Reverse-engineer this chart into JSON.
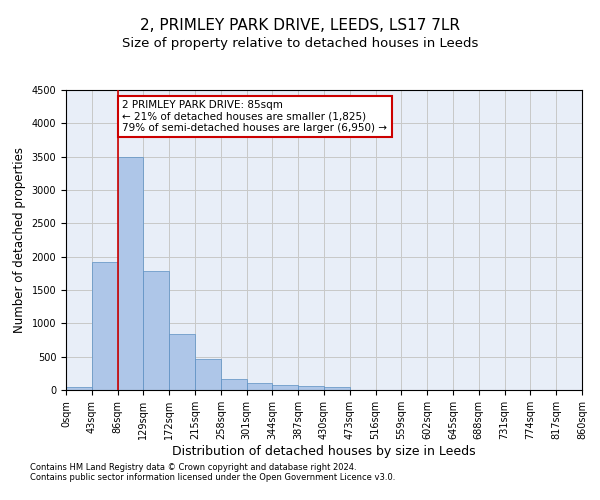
{
  "title1": "2, PRIMLEY PARK DRIVE, LEEDS, LS17 7LR",
  "title2": "Size of property relative to detached houses in Leeds",
  "xlabel": "Distribution of detached houses by size in Leeds",
  "ylabel": "Number of detached properties",
  "bar_values": [
    50,
    1920,
    3500,
    1780,
    840,
    460,
    160,
    100,
    80,
    60,
    50,
    0,
    0,
    0,
    0,
    0,
    0,
    0,
    0,
    0
  ],
  "bin_edges": [
    0,
    43,
    86,
    129,
    172,
    215,
    258,
    301,
    344,
    387,
    430,
    473,
    516,
    559,
    602,
    645,
    688,
    731,
    774,
    817,
    860
  ],
  "tick_labels": [
    "0sqm",
    "43sqm",
    "86sqm",
    "129sqm",
    "172sqm",
    "215sqm",
    "258sqm",
    "301sqm",
    "344sqm",
    "387sqm",
    "430sqm",
    "473sqm",
    "516sqm",
    "559sqm",
    "602sqm",
    "645sqm",
    "688sqm",
    "731sqm",
    "774sqm",
    "817sqm",
    "860sqm"
  ],
  "bar_color": "#aec6e8",
  "bar_edge_color": "#5a8fc2",
  "bar_edge_width": 0.5,
  "grid_color": "#c8c8c8",
  "background_color": "#e8eef8",
  "annotation_text": "2 PRIMLEY PARK DRIVE: 85sqm\n← 21% of detached houses are smaller (1,825)\n79% of semi-detached houses are larger (6,950) →",
  "annotation_box_color": "#ffffff",
  "annotation_box_edge_color": "#cc0000",
  "red_line_x": 86,
  "ylim": [
    0,
    4500
  ],
  "yticks": [
    0,
    500,
    1000,
    1500,
    2000,
    2500,
    3000,
    3500,
    4000,
    4500
  ],
  "footnote1": "Contains HM Land Registry data © Crown copyright and database right 2024.",
  "footnote2": "Contains public sector information licensed under the Open Government Licence v3.0.",
  "title1_fontsize": 11,
  "title2_fontsize": 9.5,
  "tick_fontsize": 7,
  "ylabel_fontsize": 8.5,
  "xlabel_fontsize": 9,
  "annotation_fontsize": 7.5,
  "footnote_fontsize": 6
}
